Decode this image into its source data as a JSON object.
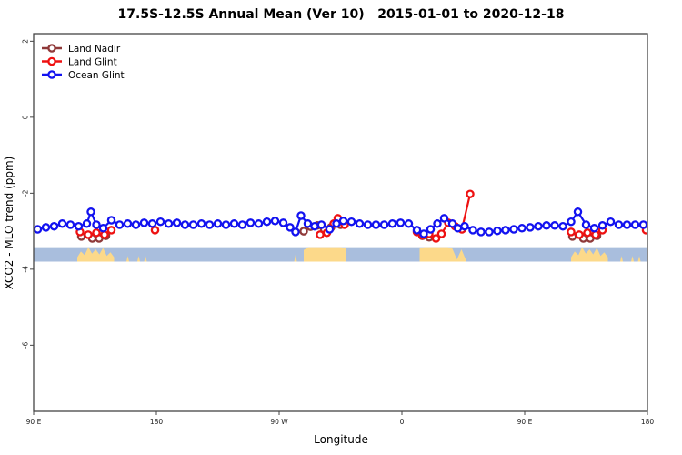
{
  "title": "17.5S-12.5S Annual Mean (Ver 10)   2015-01-01 to 2020-12-18",
  "chart_data": {
    "type": "scatter",
    "title": "17.5S-12.5S Annual Mean (Ver 10)   2015-01-01 to 2020-12-18",
    "xlabel": "Longitude",
    "ylabel": "XCO2 - MLO trend (ppm)",
    "x_axis_note": "longitude wraps eastward from 90E across the dateline and around again; deg = offset from 90E",
    "xlim_deg": [
      0,
      450
    ],
    "ylim": [
      -7.74,
      2.2
    ],
    "y_ticks": [
      2,
      0,
      -2,
      -4,
      -6
    ],
    "x_ticks": [
      {
        "deg": 0,
        "label": "90 E"
      },
      {
        "deg": 90,
        "label": "180"
      },
      {
        "deg": 180,
        "label": "90 W"
      },
      {
        "deg": 270,
        "label": "0"
      },
      {
        "deg": 360,
        "label": "90 E"
      },
      {
        "deg": 450,
        "label": "180"
      }
    ],
    "grid": false,
    "legend_position": "top-left",
    "legend": [
      {
        "label": "Land Nadir",
        "color": "#8f3939"
      },
      {
        "label": "Land Glint",
        "color": "#ee1111"
      },
      {
        "label": "Ocean Glint",
        "color": "#1212f0"
      }
    ],
    "map_strip": {
      "description": "land/ocean strip for latitude band",
      "ocean_color": "#a9bedd",
      "land_color": "#fcd98a",
      "top_ppm": -3.42,
      "bottom_ppm": -3.8,
      "patches": [
        {
          "from": 32,
          "to": 59,
          "profile": [
            0.3,
            0.7,
            0.45,
            1,
            0.55,
            0.85,
            0.5,
            0.95,
            0.4,
            0.65,
            0.3
          ]
        },
        {
          "from": 68,
          "to": 70,
          "profile": [
            0.4
          ]
        },
        {
          "from": 76,
          "to": 78,
          "profile": [
            0.4
          ]
        },
        {
          "from": 81,
          "to": 83,
          "profile": [
            0.4
          ]
        },
        {
          "from": 191,
          "to": 193,
          "profile": [
            0.5
          ]
        },
        {
          "from": 198,
          "to": 229,
          "profile": [
            0.8,
            1,
            1,
            1,
            1,
            1,
            1,
            1,
            1,
            0.9
          ]
        },
        {
          "from": 283,
          "to": 307,
          "profile": [
            0.9,
            1,
            1,
            1,
            1,
            1,
            1,
            0.9
          ]
        },
        {
          "from": 307,
          "to": 317,
          "profile": [
            0.9,
            0.15,
            0.85,
            0.1
          ]
        },
        {
          "from": 394,
          "to": 421,
          "profile": [
            0.3,
            0.7,
            0.45,
            1,
            0.55,
            0.85,
            0.5,
            0.95,
            0.4,
            0.65,
            0.3
          ]
        },
        {
          "from": 430,
          "to": 432,
          "profile": [
            0.4
          ]
        },
        {
          "from": 438,
          "to": 440,
          "profile": [
            0.4
          ]
        },
        {
          "from": 443,
          "to": 445,
          "profile": [
            0.4
          ]
        }
      ]
    },
    "series": [
      {
        "name": "Land Nadir",
        "color": "#8f3939",
        "segments": [
          [
            [
              35,
              -3.14
            ],
            [
              43,
              -3.19
            ],
            [
              48,
              -3.19
            ],
            [
              53,
              -3.12
            ]
          ],
          [
            [
              198,
              -3.0
            ],
            [
              203,
              -2.88
            ],
            [
              208,
              -2.85
            ],
            [
              213,
              -2.95
            ],
            [
              218,
              -2.9
            ],
            [
              225,
              -2.83
            ]
          ],
          [
            [
              285,
              -3.12
            ],
            [
              290,
              -3.16
            ]
          ],
          [
            [
              395,
              -3.14
            ],
            [
              403,
              -3.19
            ],
            [
              408,
              -3.19
            ],
            [
              413,
              -3.12
            ]
          ]
        ]
      },
      {
        "name": "Land Glint",
        "color": "#ee1111",
        "segments": [
          [
            [
              34,
              -3.02
            ],
            [
              40,
              -3.09
            ],
            [
              46,
              -3.04
            ],
            [
              52,
              -3.09
            ],
            [
              57,
              -2.97
            ]
          ],
          [
            [
              89,
              -2.97
            ]
          ],
          [
            [
              210,
              -3.09
            ],
            [
              215,
              -3.04
            ],
            [
              220,
              -2.8
            ],
            [
              223,
              -2.66
            ],
            [
              228,
              -2.83
            ]
          ],
          [
            [
              281,
              -3.02
            ],
            [
              285,
              -3.11
            ],
            [
              290,
              -3.07
            ],
            [
              295,
              -3.19
            ],
            [
              299,
              -3.07
            ],
            [
              304,
              -2.78
            ],
            [
              309,
              -2.87
            ],
            [
              314,
              -2.95
            ],
            [
              320,
              -2.02
            ]
          ],
          [
            [
              394,
              -3.02
            ],
            [
              400,
              -3.09
            ],
            [
              406,
              -3.04
            ],
            [
              412,
              -3.09
            ],
            [
              417,
              -2.97
            ]
          ],
          [
            [
              449,
              -2.97
            ]
          ]
        ]
      },
      {
        "name": "Ocean Glint",
        "color": "#1212f0",
        "segments": [
          [
            [
              3,
              -2.95
            ],
            [
              9,
              -2.9
            ],
            [
              15,
              -2.87
            ],
            [
              21,
              -2.8
            ],
            [
              27,
              -2.83
            ],
            [
              33,
              -2.87
            ],
            [
              39,
              -2.8
            ],
            [
              42,
              -2.49
            ],
            [
              46,
              -2.83
            ],
            [
              51,
              -2.92
            ],
            [
              57,
              -2.71
            ],
            [
              63,
              -2.83
            ],
            [
              69,
              -2.8
            ],
            [
              75,
              -2.83
            ],
            [
              81,
              -2.78
            ],
            [
              87,
              -2.8
            ],
            [
              93,
              -2.75
            ],
            [
              99,
              -2.8
            ],
            [
              105,
              -2.78
            ],
            [
              111,
              -2.83
            ],
            [
              117,
              -2.83
            ],
            [
              123,
              -2.8
            ],
            [
              129,
              -2.83
            ],
            [
              135,
              -2.8
            ],
            [
              141,
              -2.83
            ],
            [
              147,
              -2.8
            ],
            [
              153,
              -2.83
            ],
            [
              159,
              -2.78
            ],
            [
              165,
              -2.8
            ],
            [
              171,
              -2.75
            ],
            [
              177,
              -2.73
            ],
            [
              183,
              -2.78
            ],
            [
              188,
              -2.9
            ],
            [
              192,
              -3.02
            ],
            [
              196,
              -2.59
            ],
            [
              201,
              -2.8
            ],
            [
              206,
              -2.87
            ],
            [
              211,
              -2.83
            ],
            [
              217,
              -2.95
            ],
            [
              222,
              -2.8
            ],
            [
              227,
              -2.73
            ],
            [
              233,
              -2.75
            ],
            [
              239,
              -2.8
            ],
            [
              245,
              -2.83
            ],
            [
              251,
              -2.83
            ],
            [
              257,
              -2.83
            ],
            [
              263,
              -2.8
            ],
            [
              269,
              -2.78
            ],
            [
              275,
              -2.8
            ],
            [
              281,
              -2.97
            ],
            [
              286,
              -3.07
            ],
            [
              291,
              -2.95
            ],
            [
              296,
              -2.8
            ],
            [
              301,
              -2.66
            ],
            [
              307,
              -2.8
            ],
            [
              311,
              -2.92
            ],
            [
              316,
              -2.87
            ],
            [
              322,
              -2.97
            ],
            [
              328,
              -3.02
            ],
            [
              334,
              -3.02
            ],
            [
              340,
              -2.99
            ],
            [
              346,
              -2.97
            ],
            [
              352,
              -2.95
            ],
            [
              358,
              -2.92
            ],
            [
              364,
              -2.9
            ],
            [
              370,
              -2.87
            ],
            [
              376,
              -2.85
            ],
            [
              382,
              -2.85
            ],
            [
              388,
              -2.87
            ],
            [
              394,
              -2.75
            ],
            [
              399,
              -2.49
            ],
            [
              405,
              -2.83
            ],
            [
              411,
              -2.92
            ],
            [
              417,
              -2.85
            ],
            [
              423,
              -2.75
            ],
            [
              429,
              -2.83
            ],
            [
              435,
              -2.83
            ],
            [
              441,
              -2.83
            ],
            [
              447,
              -2.83
            ]
          ]
        ]
      }
    ]
  }
}
